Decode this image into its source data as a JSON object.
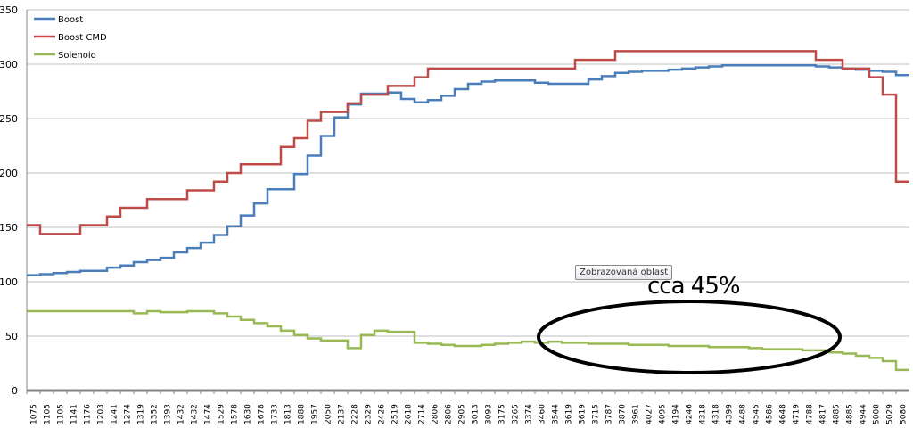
{
  "chart_data": {
    "type": "line",
    "title": "",
    "xlabel": "",
    "ylabel": "",
    "ylim": [
      0,
      350
    ],
    "yticks": [
      0,
      50,
      100,
      150,
      200,
      250,
      300,
      350
    ],
    "grid": true,
    "legend_position": "top-left",
    "categories": [
      "1075",
      "1105",
      "1105",
      "1141",
      "1176",
      "1203",
      "1241",
      "1274",
      "1319",
      "1352",
      "1393",
      "1432",
      "1432",
      "1474",
      "1529",
      "1578",
      "1630",
      "1678",
      "1733",
      "1813",
      "1888",
      "1957",
      "2050",
      "2137",
      "2228",
      "2329",
      "2426",
      "2519",
      "2618",
      "2714",
      "2806",
      "2806",
      "2905",
      "3013",
      "3093",
      "3175",
      "3265",
      "3374",
      "3460",
      "3544",
      "3619",
      "3619",
      "3715",
      "3787",
      "3870",
      "3961",
      "4027",
      "4095",
      "4194",
      "4246",
      "4318",
      "4318",
      "4399",
      "4488",
      "4545",
      "4586",
      "4648",
      "4719",
      "4788",
      "4817",
      "4885",
      "4885",
      "4944",
      "5000",
      "5029",
      "5080"
    ],
    "series": [
      {
        "name": "Boost",
        "color": "#4a7ebb",
        "values": [
          106,
          107,
          108,
          109,
          110,
          110,
          113,
          115,
          118,
          120,
          122,
          127,
          131,
          136,
          143,
          151,
          161,
          172,
          185,
          185,
          199,
          216,
          234,
          251,
          263,
          273,
          273,
          274,
          268,
          265,
          267,
          271,
          277,
          282,
          284,
          285,
          285,
          285,
          283,
          282,
          282,
          282,
          286,
          289,
          292,
          293,
          294,
          294,
          295,
          296,
          297,
          298,
          299,
          299,
          299,
          299,
          299,
          299,
          299,
          298,
          297,
          296,
          295,
          294,
          293,
          290
        ]
      },
      {
        "name": "Boost CMD",
        "color": "#be4b48",
        "values": [
          152,
          144,
          144,
          144,
          152,
          152,
          160,
          168,
          168,
          176,
          176,
          176,
          184,
          184,
          192,
          200,
          208,
          208,
          208,
          224,
          232,
          248,
          256,
          256,
          264,
          272,
          272,
          280,
          280,
          288,
          296,
          296,
          296,
          296,
          296,
          296,
          296,
          296,
          296,
          296,
          296,
          304,
          304,
          304,
          312,
          312,
          312,
          312,
          312,
          312,
          312,
          312,
          312,
          312,
          312,
          312,
          312,
          312,
          312,
          304,
          304,
          296,
          296,
          288,
          272,
          192
        ]
      },
      {
        "name": "Solenoid",
        "color": "#98b954",
        "values": [
          73,
          73,
          73,
          73,
          73,
          73,
          73,
          73,
          71,
          73,
          72,
          72,
          73,
          73,
          71,
          68,
          65,
          62,
          59,
          55,
          51,
          48,
          46,
          46,
          39,
          51,
          55,
          54,
          54,
          44,
          43,
          42,
          41,
          41,
          42,
          43,
          44,
          45,
          44,
          45,
          44,
          44,
          43,
          43,
          43,
          42,
          42,
          42,
          41,
          41,
          41,
          40,
          40,
          40,
          39,
          38,
          38,
          38,
          37,
          37,
          35,
          34,
          32,
          30,
          27,
          19
        ]
      }
    ],
    "annotations": {
      "tooltip": "Zobrazovaná oblast",
      "note": "cca 45%"
    }
  }
}
